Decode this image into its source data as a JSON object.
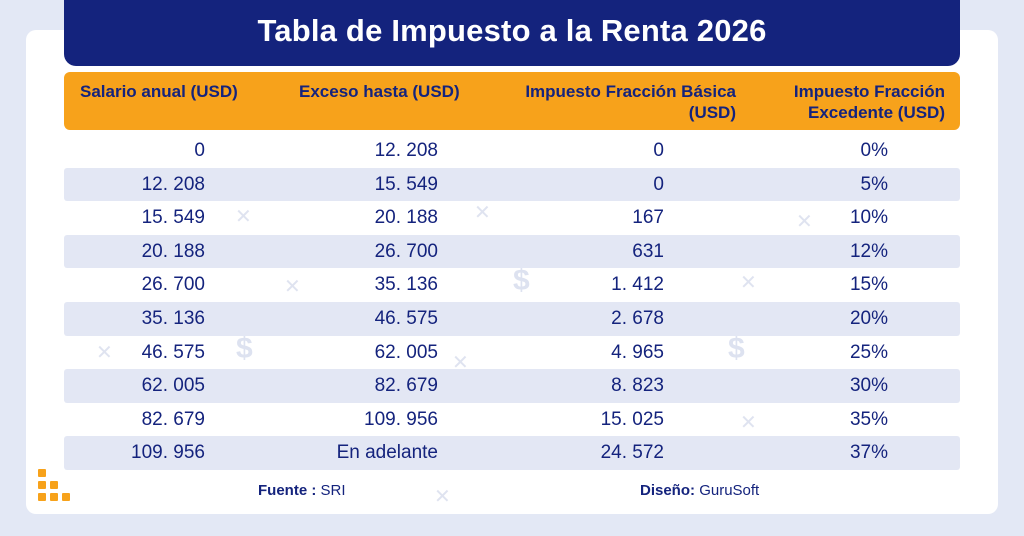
{
  "title": "Tabla de Impuesto a la Renta 2026",
  "headers": {
    "col1": "Salario anual (USD)",
    "col2": "Exceso hasta (USD)",
    "col3_line1": "Impuesto Fracción Básica",
    "col3_line2": "(USD)",
    "col4_line1": "Impuesto Fracción",
    "col4_line2": "Excedente (USD)"
  },
  "rows": [
    [
      "0",
      "12. 208",
      "0",
      "0%"
    ],
    [
      "12. 208",
      "15. 549",
      "0",
      "5%"
    ],
    [
      "15. 549",
      "20. 188",
      "167",
      "10%"
    ],
    [
      "20. 188",
      "26. 700",
      "631",
      "12%"
    ],
    [
      "26. 700",
      "35. 136",
      "1. 412",
      "15%"
    ],
    [
      "35. 136",
      "46. 575",
      "2. 678",
      "20%"
    ],
    [
      "46. 575",
      "62. 005",
      "4. 965",
      "25%"
    ],
    [
      "62. 005",
      "82. 679",
      "8. 823",
      "30%"
    ],
    [
      "82. 679",
      "109. 956",
      "15. 025",
      "35%"
    ],
    [
      "109. 956",
      "En adelante",
      "24. 572",
      "37%"
    ]
  ],
  "footer": {
    "source_label": "Fuente :",
    "source_value": "SRI",
    "design_label": "Diseño:",
    "design_value": "GuruSoft"
  },
  "colors": {
    "navy": "#14237d",
    "orange": "#f7a21b",
    "row_alt": "#e3e7f4",
    "background": "#e3e8f5"
  },
  "icons": {
    "logo": "gurusoft-dots-logo",
    "decoration": [
      "sparkle-icon",
      "dollar-icon"
    ]
  }
}
